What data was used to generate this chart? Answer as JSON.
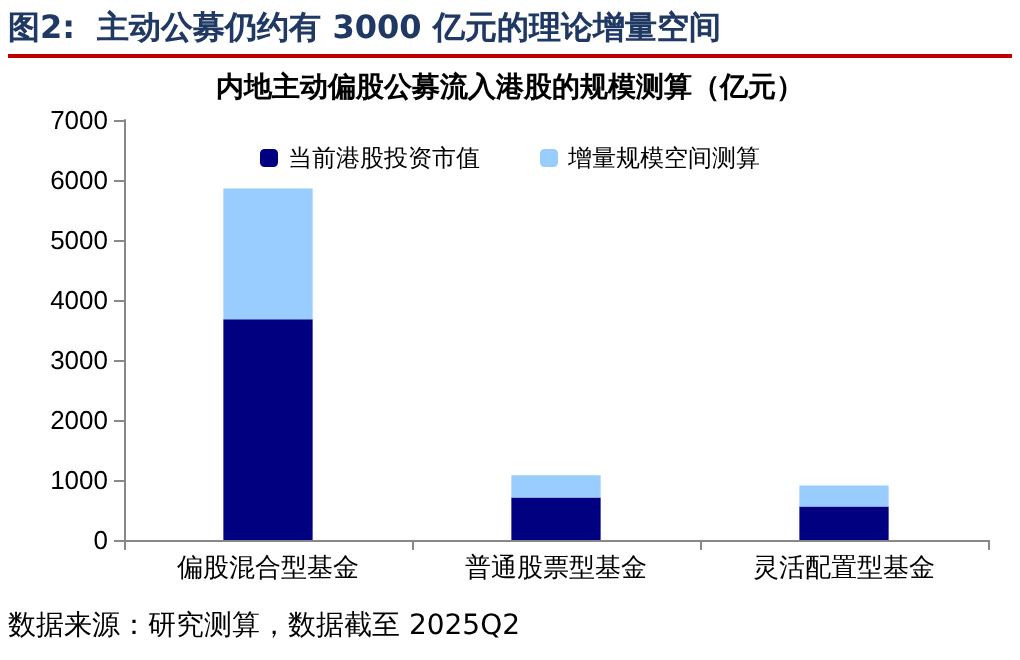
{
  "chart_data": {
    "type": "bar",
    "title": "图2:  主动公募仍约有 3000 亿元的理论增量空间",
    "subtitle": "内地主动偏股公募流入港股的规模测算（亿元）",
    "categories": [
      "偏股混合型基金",
      "普通股票型基金",
      "灵活配置型基金"
    ],
    "series": [
      {
        "name": "当前港股投资市值",
        "color": "#000080",
        "values": [
          3680,
          710,
          560
        ]
      },
      {
        "name": "增量规模空间测算",
        "color": "#99ccff",
        "values": [
          2180,
          370,
          350
        ]
      }
    ],
    "stacked": true,
    "ylim": [
      0,
      7000
    ],
    "yticks": [
      0,
      1000,
      2000,
      3000,
      4000,
      5000,
      6000,
      7000
    ],
    "grid": false,
    "legend": "top",
    "annotations": [
      "数据来源：研究测算，数据截至 2025Q2"
    ]
  }
}
